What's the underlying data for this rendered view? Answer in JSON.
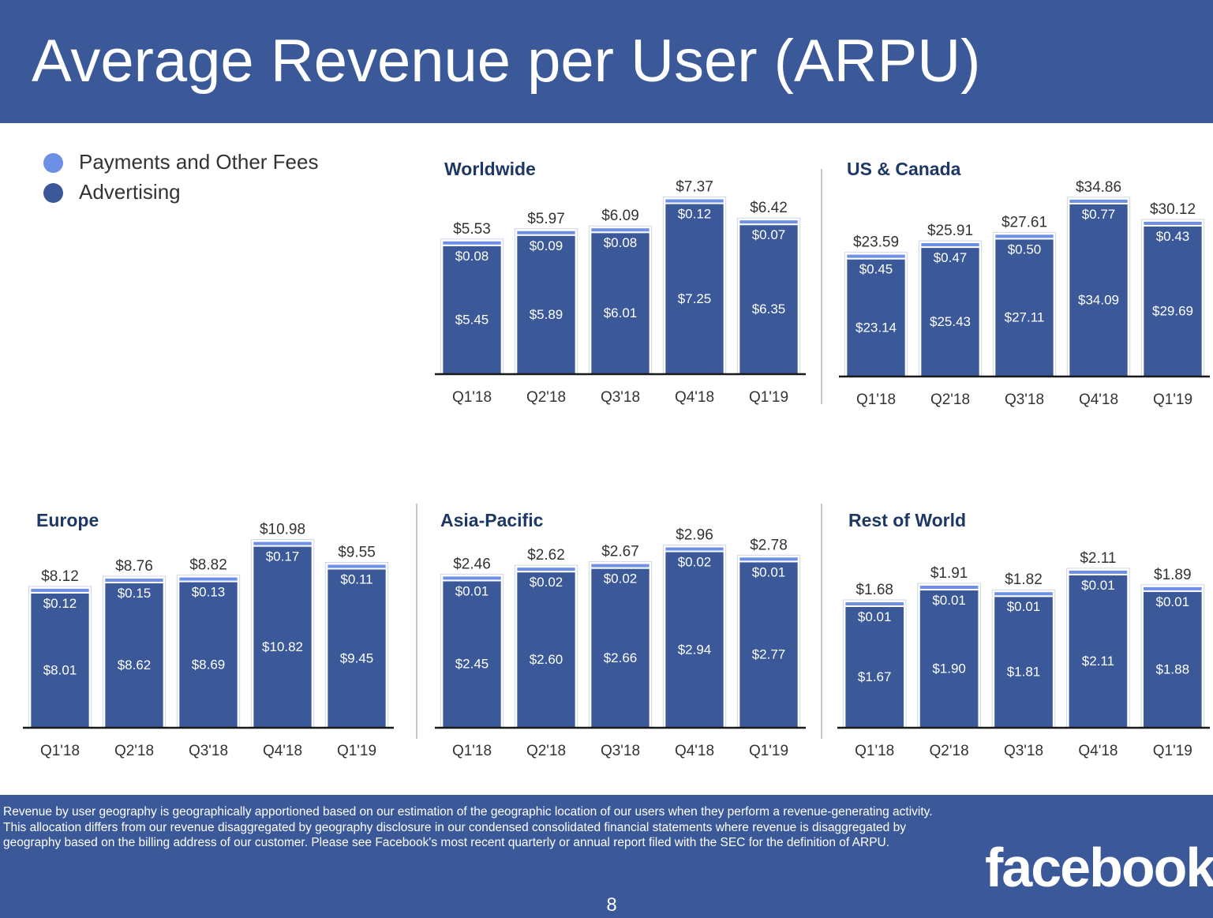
{
  "header": {
    "title": "Average Revenue per User (ARPU)"
  },
  "legend": {
    "items": [
      {
        "label": "Payments and Other Fees",
        "color": "#6d8fe6"
      },
      {
        "label": "Advertising",
        "color": "#3b5998"
      }
    ]
  },
  "chart_data": [
    {
      "type": "bar",
      "stacked": true,
      "title": "Worldwide",
      "categories": [
        "Q1'18",
        "Q2'18",
        "Q3'18",
        "Q4'18",
        "Q1'19"
      ],
      "totals": [
        "$5.53",
        "$5.97",
        "$6.09",
        "$7.37",
        "$6.42"
      ],
      "series": [
        {
          "name": "Advertising",
          "values": [
            5.45,
            5.89,
            6.01,
            7.25,
            6.35
          ],
          "labels": [
            "$5.45",
            "$5.89",
            "$6.01",
            "$7.25",
            "$6.35"
          ]
        },
        {
          "name": "Payments and Other Fees",
          "values": [
            0.08,
            0.09,
            0.08,
            0.12,
            0.07
          ],
          "labels": [
            "$0.08",
            "$0.09",
            "$0.08",
            "$0.12",
            "$0.07"
          ]
        }
      ]
    },
    {
      "type": "bar",
      "stacked": true,
      "title": "US & Canada",
      "categories": [
        "Q1'18",
        "Q2'18",
        "Q3'18",
        "Q4'18",
        "Q1'19"
      ],
      "totals": [
        "$23.59",
        "$25.91",
        "$27.61",
        "$34.86",
        "$30.12"
      ],
      "series": [
        {
          "name": "Advertising",
          "values": [
            23.14,
            25.43,
            27.11,
            34.09,
            29.69
          ],
          "labels": [
            "$23.14",
            "$25.43",
            "$27.11",
            "$34.09",
            "$29.69"
          ]
        },
        {
          "name": "Payments and Other Fees",
          "values": [
            0.45,
            0.47,
            0.5,
            0.77,
            0.43
          ],
          "labels": [
            "$0.45",
            "$0.47",
            "$0.50",
            "$0.77",
            "$0.43"
          ]
        }
      ]
    },
    {
      "type": "bar",
      "stacked": true,
      "title": "Europe",
      "categories": [
        "Q1'18",
        "Q2'18",
        "Q3'18",
        "Q4'18",
        "Q1'19"
      ],
      "totals": [
        "$8.12",
        "$8.76",
        "$8.82",
        "$10.98",
        "$9.55"
      ],
      "series": [
        {
          "name": "Advertising",
          "values": [
            8.01,
            8.62,
            8.69,
            10.82,
            9.45
          ],
          "labels": [
            "$8.01",
            "$8.62",
            "$8.69",
            "$10.82",
            "$9.45"
          ]
        },
        {
          "name": "Payments and Other Fees",
          "values": [
            0.12,
            0.15,
            0.13,
            0.17,
            0.11
          ],
          "labels": [
            "$0.12",
            "$0.15",
            "$0.13",
            "$0.17",
            "$0.11"
          ]
        }
      ]
    },
    {
      "type": "bar",
      "stacked": true,
      "title": "Asia-Pacific",
      "categories": [
        "Q1'18",
        "Q2'18",
        "Q3'18",
        "Q4'18",
        "Q1'19"
      ],
      "totals": [
        "$2.46",
        "$2.62",
        "$2.67",
        "$2.96",
        "$2.78"
      ],
      "series": [
        {
          "name": "Advertising",
          "values": [
            2.45,
            2.6,
            2.66,
            2.94,
            2.77
          ],
          "labels": [
            "$2.45",
            "$2.60",
            "$2.66",
            "$2.94",
            "$2.77"
          ]
        },
        {
          "name": "Payments and Other Fees",
          "values": [
            0.01,
            0.02,
            0.02,
            0.02,
            0.01
          ],
          "labels": [
            "$0.01",
            "$0.02",
            "$0.02",
            "$0.02",
            "$0.01"
          ]
        }
      ]
    },
    {
      "type": "bar",
      "stacked": true,
      "title": "Rest of World",
      "categories": [
        "Q1'18",
        "Q2'18",
        "Q3'18",
        "Q4'18",
        "Q1'19"
      ],
      "totals": [
        "$1.68",
        "$1.91",
        "$1.82",
        "$2.11",
        "$1.89"
      ],
      "series": [
        {
          "name": "Advertising",
          "values": [
            1.67,
            1.9,
            1.81,
            2.11,
            1.88
          ],
          "labels": [
            "$1.67",
            "$1.90",
            "$1.81",
            "$2.11",
            "$1.88"
          ]
        },
        {
          "name": "Payments and Other Fees",
          "values": [
            0.01,
            0.01,
            0.01,
            0.01,
            0.01
          ],
          "labels": [
            "$0.01",
            "$0.01",
            "$0.01",
            "$0.01",
            "$0.01"
          ]
        }
      ]
    }
  ],
  "footer": {
    "footnote": "Revenue by user geography is geographically apportioned based on our estimation of the geographic location of our users when they perform a revenue-generating activity. This allocation differs from our revenue disaggregated by geography disclosure in our condensed consolidated financial statements where revenue is disaggregated by geography based on the billing address of our customer. Please see Facebook's most recent quarterly or annual report filed with the SEC for the definition of ARPU.",
    "logo_text": "facebook",
    "page_number": "8"
  }
}
